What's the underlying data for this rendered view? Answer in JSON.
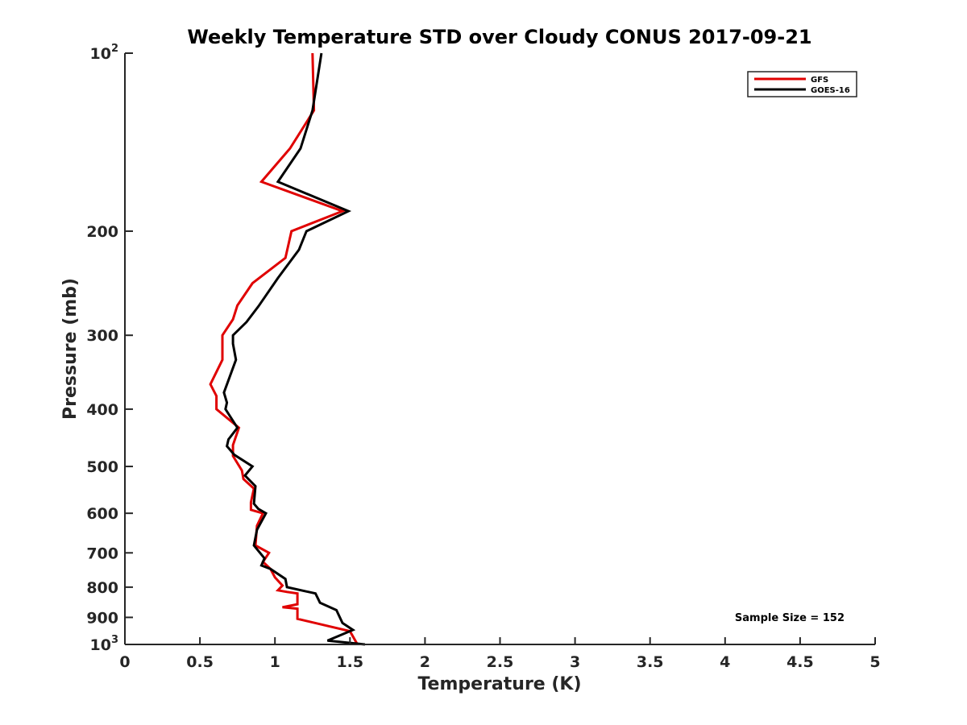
{
  "chart_data": {
    "type": "line",
    "title": "Weekly Temperature STD over Cloudy CONUS 2017-09-21",
    "xlabel": "Temperature (K)",
    "ylabel": "Pressure (mb)",
    "xlim": [
      0,
      5
    ],
    "ylim": [
      1000,
      100
    ],
    "y_scale": "log",
    "x_ticks": [
      0,
      0.5,
      1,
      1.5,
      2,
      2.5,
      3,
      3.5,
      4,
      4.5,
      5
    ],
    "x_tick_labels": [
      "0",
      "0.5",
      "1",
      "1.5",
      "2",
      "2.5",
      "3",
      "3.5",
      "4",
      "4.5",
      "5"
    ],
    "y_ticks": [
      {
        "value": 100,
        "base": "10",
        "exp": "2"
      },
      {
        "value": 200,
        "label": "200"
      },
      {
        "value": 300,
        "label": "300"
      },
      {
        "value": 400,
        "label": "400"
      },
      {
        "value": 500,
        "label": "500"
      },
      {
        "value": 600,
        "label": "600"
      },
      {
        "value": 700,
        "label": "700"
      },
      {
        "value": 800,
        "label": "800"
      },
      {
        "value": 900,
        "label": "900"
      },
      {
        "value": 1000,
        "base": "10",
        "exp": "3"
      }
    ],
    "legend_position": "top-right",
    "annotation": "Sample Size = 152",
    "series": [
      {
        "name": "GFS",
        "color": "#e00000",
        "points": [
          [
            1.25,
            100
          ],
          [
            1.26,
            125
          ],
          [
            1.1,
            145
          ],
          [
            0.91,
            165
          ],
          [
            1.45,
            185
          ],
          [
            1.11,
            200
          ],
          [
            1.07,
            222
          ],
          [
            0.85,
            245
          ],
          [
            0.75,
            267
          ],
          [
            0.72,
            282
          ],
          [
            0.65,
            300
          ],
          [
            0.65,
            330
          ],
          [
            0.57,
            363
          ],
          [
            0.61,
            380
          ],
          [
            0.61,
            400
          ],
          [
            0.76,
            430
          ],
          [
            0.72,
            460
          ],
          [
            0.72,
            480
          ],
          [
            0.78,
            508
          ],
          [
            0.79,
            525
          ],
          [
            0.86,
            545
          ],
          [
            0.84,
            575
          ],
          [
            0.84,
            592
          ],
          [
            0.92,
            600
          ],
          [
            0.88,
            630
          ],
          [
            0.87,
            680
          ],
          [
            0.96,
            700
          ],
          [
            0.92,
            725
          ],
          [
            0.97,
            745
          ],
          [
            1.0,
            770
          ],
          [
            1.05,
            795
          ],
          [
            1.02,
            810
          ],
          [
            1.08,
            815
          ],
          [
            1.15,
            820
          ],
          [
            1.15,
            855
          ],
          [
            1.05,
            865
          ],
          [
            1.15,
            870
          ],
          [
            1.15,
            905
          ],
          [
            1.5,
            950
          ],
          [
            1.55,
            1000
          ]
        ]
      },
      {
        "name": "GOES-16",
        "color": "#000000",
        "points": [
          [
            1.31,
            100
          ],
          [
            1.25,
            125
          ],
          [
            1.17,
            145
          ],
          [
            1.02,
            165
          ],
          [
            1.49,
            185
          ],
          [
            1.21,
            200
          ],
          [
            1.16,
            215
          ],
          [
            1.02,
            240
          ],
          [
            0.89,
            268
          ],
          [
            0.81,
            285
          ],
          [
            0.72,
            300
          ],
          [
            0.72,
            310
          ],
          [
            0.74,
            330
          ],
          [
            0.66,
            375
          ],
          [
            0.68,
            390
          ],
          [
            0.67,
            400
          ],
          [
            0.75,
            430
          ],
          [
            0.69,
            450
          ],
          [
            0.68,
            462
          ],
          [
            0.73,
            478
          ],
          [
            0.85,
            500
          ],
          [
            0.8,
            518
          ],
          [
            0.87,
            540
          ],
          [
            0.86,
            578
          ],
          [
            0.89,
            590
          ],
          [
            0.94,
            600
          ],
          [
            0.88,
            640
          ],
          [
            0.86,
            680
          ],
          [
            0.93,
            715
          ],
          [
            0.91,
            735
          ],
          [
            0.97,
            745
          ],
          [
            1.07,
            775
          ],
          [
            1.08,
            800
          ],
          [
            1.27,
            820
          ],
          [
            1.3,
            850
          ],
          [
            1.41,
            875
          ],
          [
            1.45,
            920
          ],
          [
            1.52,
            945
          ],
          [
            1.35,
            985
          ],
          [
            1.6,
            1000
          ]
        ]
      }
    ]
  }
}
